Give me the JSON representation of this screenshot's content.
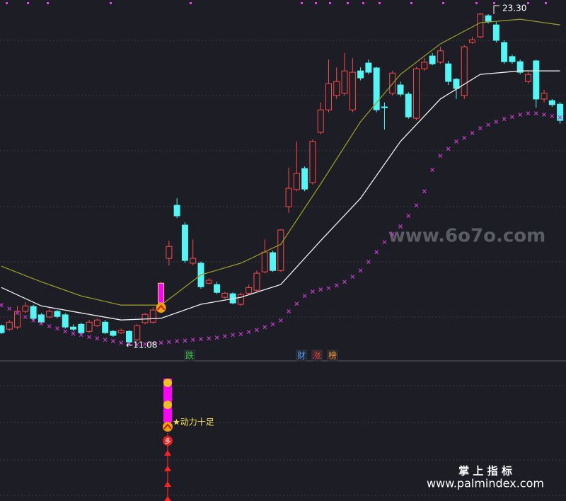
{
  "chart_data": {
    "type": "candlestick",
    "up_color": "#ff4a4a",
    "down_color": "#54f5f5",
    "highlight_color": "#ff00ff",
    "highlight_candle": 20,
    "candles": {
      "open": [
        11.73,
        11.6,
        11.68,
        12.26,
        12.44,
        12.13,
        12.05,
        12.26,
        12.13,
        11.68,
        11.78,
        11.52,
        11.73,
        11.86,
        11.52,
        11.47,
        11.52,
        11.21,
        11.84,
        11.86,
        12.57,
        14.22,
        16.18,
        15.45,
        14.04,
        14.04,
        13.3,
        13.25,
        12.78,
        12.91,
        12.52,
        12.93,
        13.04,
        13.72,
        14.43,
        13.77,
        16.13,
        16.76,
        17.54,
        17.02,
        18.88,
        19.71,
        20.24,
        20.32,
        19.71,
        21.15,
        21.44,
        21.26,
        19.82,
        20.32,
        20.63,
        20.29,
        19.4,
        21.23,
        21.7,
        21.47,
        21.41,
        20.84,
        20.24,
        22.2,
        22.41,
        23.19,
        22.85,
        22.2,
        21.68,
        21.49,
        20.76,
        21.52,
        20.11,
        20.05,
        19.92
      ],
      "high": [
        11.78,
        11.94,
        12.46,
        12.6,
        12.5,
        12.2,
        12.35,
        12.31,
        12.2,
        11.78,
        11.84,
        11.94,
        12.0,
        11.94,
        11.57,
        11.62,
        11.57,
        11.78,
        12.2,
        12.4,
        13.35,
        14.87,
        16.44,
        15.55,
        14.92,
        14.1,
        13.48,
        13.35,
        12.98,
        12.96,
        12.96,
        13.25,
        13.77,
        14.92,
        14.5,
        15.3,
        17.57,
        18.54,
        17.62,
        18.62,
        19.98,
        21.57,
        21.28,
        21.81,
        21.62,
        21.28,
        21.57,
        21.3,
        19.98,
        21.15,
        20.76,
        20.37,
        21.3,
        21.62,
        21.81,
        22.04,
        21.52,
        20.89,
        22.1,
        22.41,
        23.3,
        23.25,
        22.95,
        22.28,
        21.75,
        21.57,
        21.1,
        21.57,
        20.45,
        20.11,
        20.0
      ],
      "low": [
        11.42,
        11.55,
        11.6,
        12.2,
        11.94,
        11.8,
        12.0,
        12.0,
        11.62,
        11.52,
        11.42,
        11.47,
        11.68,
        11.42,
        11.32,
        11.42,
        11.08,
        11.16,
        11.78,
        11.8,
        12.52,
        13.96,
        15.7,
        14.04,
        13.96,
        13.1,
        13.25,
        12.9,
        12.72,
        12.52,
        12.46,
        12.88,
        12.98,
        13.67,
        13.72,
        13.72,
        15.9,
        16.7,
        16.7,
        16.95,
        18.8,
        19.62,
        20.11,
        20.24,
        19.62,
        20.8,
        21.02,
        19.62,
        18.98,
        20.24,
        20.2,
        19.38,
        19.32,
        21.15,
        21.36,
        21.41,
        20.63,
        20.11,
        20.11,
        22.15,
        22.35,
        22.9,
        22.2,
        21.41,
        21.41,
        21.02,
        20.68,
        19.79,
        19.98,
        19.82,
        19.2
      ],
      "close": [
        11.47,
        11.86,
        12.26,
        12.46,
        12.0,
        11.86,
        12.26,
        12.07,
        11.68,
        11.6,
        11.47,
        11.86,
        11.94,
        11.47,
        11.37,
        11.55,
        11.13,
        11.73,
        12.15,
        12.31,
        13.3,
        14.66,
        15.79,
        14.14,
        14.22,
        13.17,
        13.41,
        12.96,
        12.93,
        12.57,
        12.88,
        13.14,
        13.67,
        14.45,
        13.77,
        15.27,
        16.81,
        17.36,
        16.78,
        18.54,
        19.71,
        20.68,
        20.76,
        21.15,
        21.1,
        20.89,
        21.1,
        19.71,
        19.79,
        21.07,
        20.29,
        19.45,
        21.23,
        21.47,
        21.41,
        21.89,
        20.76,
        20.5,
        22.04,
        22.3,
        23.25,
        22.98,
        22.28,
        21.49,
        21.49,
        21.1,
        21.02,
        20.11,
        20.32,
        19.9,
        19.32
      ]
    },
    "lines": [
      {
        "color": "#9a9a28",
        "x": [
          0,
          5,
          10,
          15,
          20,
          25,
          30,
          35,
          40,
          45,
          50,
          55,
          60,
          65,
          70
        ],
        "values": [
          13.93,
          13.35,
          12.83,
          12.49,
          12.49,
          13.61,
          14.04,
          14.74,
          16.97,
          19.27,
          21.02,
          22.15,
          22.93,
          23.06,
          22.85
        ]
      },
      {
        "color": "#f0f0f0",
        "x": [
          0,
          5,
          10,
          15,
          20,
          25,
          30,
          35,
          40,
          45,
          50,
          55,
          60,
          65,
          70
        ],
        "values": [
          13.14,
          12.46,
          12.2,
          11.94,
          12.0,
          12.52,
          12.78,
          13.25,
          14.87,
          16.44,
          18.54,
          20.11,
          21.02,
          21.15,
          21.15
        ]
      }
    ],
    "markers": {
      "color": "#c23cc8",
      "values": [
        12.49,
        12.36,
        12.2,
        12.05,
        11.92,
        11.81,
        11.71,
        11.63,
        11.52,
        11.44,
        11.39,
        11.31,
        11.26,
        11.21,
        11.16,
        11.1,
        11.05,
        11.03,
        11.05,
        11.08,
        11.1,
        11.13,
        11.16,
        11.18,
        11.21,
        11.23,
        11.26,
        11.29,
        11.34,
        11.39,
        11.42,
        11.5,
        11.57,
        11.68,
        11.78,
        11.92,
        12.26,
        12.54,
        12.83,
        12.99,
        13.07,
        13.12,
        13.22,
        13.35,
        13.54,
        13.77,
        14.09,
        14.45,
        14.82,
        15.11,
        15.4,
        15.79,
        16.18,
        16.7,
        17.49,
        18.01,
        18.27,
        18.54,
        18.67,
        18.85,
        19.03,
        19.16,
        19.27,
        19.37,
        19.45,
        19.53,
        19.58,
        19.58,
        19.53,
        19.48,
        19.43
      ]
    },
    "annotations": [
      {
        "text": "23.30"
      },
      {
        "text": "←11.08"
      }
    ],
    "tags": [
      {
        "text": "跌",
        "color": "#2ecc40"
      },
      {
        "text": "财",
        "color": "#4aa0ff"
      },
      {
        "text": "涨",
        "color": "#ff4040"
      },
      {
        "text": "榜",
        "color": "#ff9a30"
      }
    ],
    "indicator_label": "★动力十足",
    "indicator_icon_text": "多"
  },
  "watermarks": [
    "www.6o7o.com",
    "掌 上 指 标",
    "www.palmindex.com"
  ]
}
